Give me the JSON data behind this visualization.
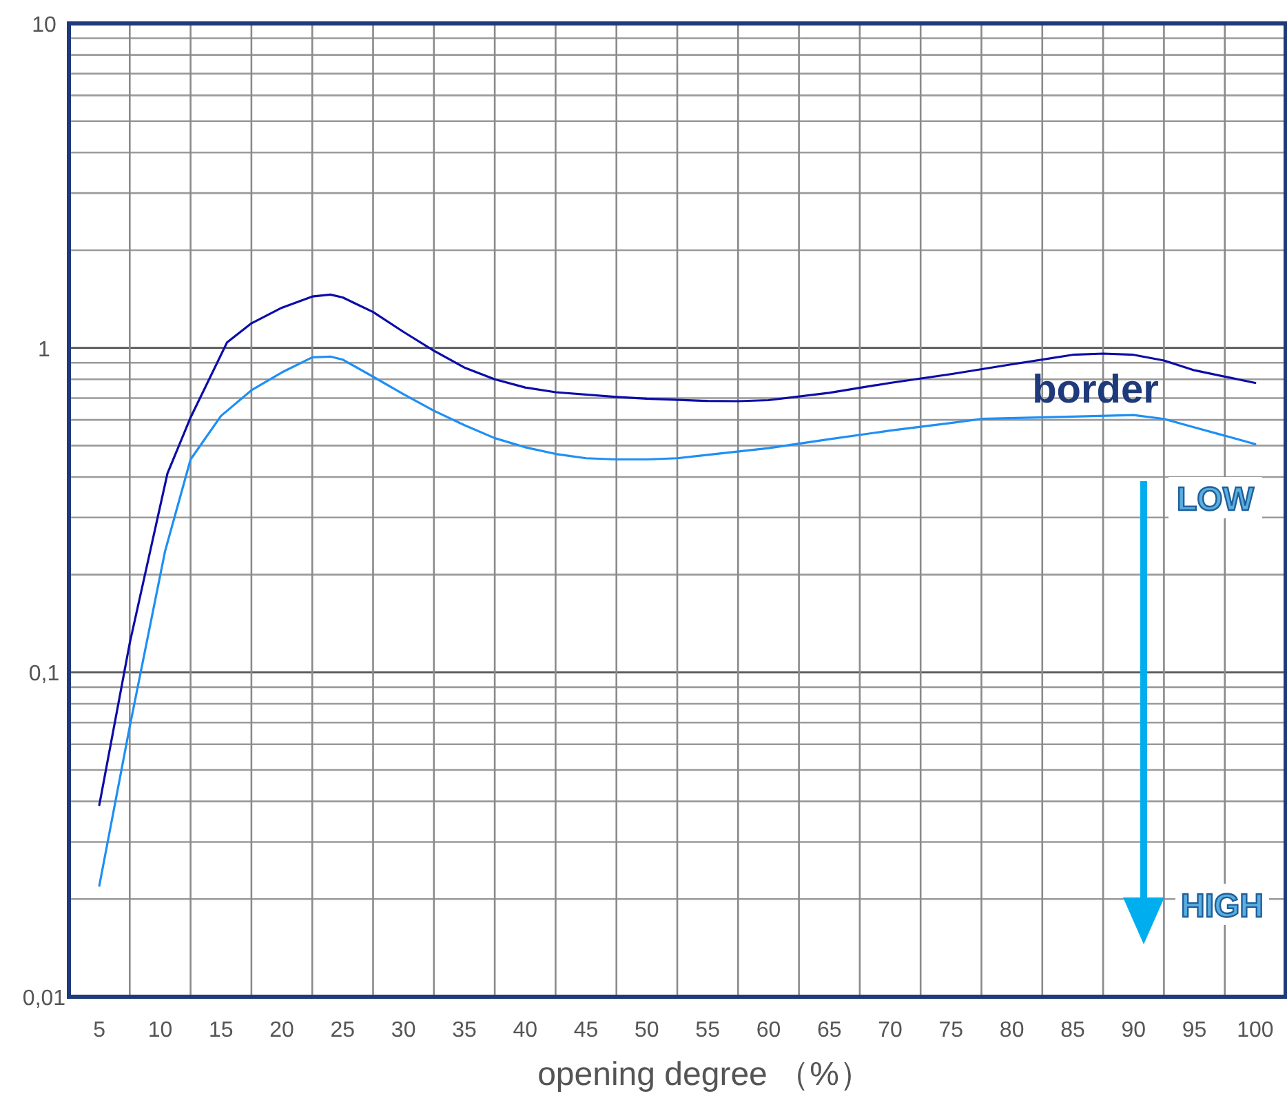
{
  "chart_data": {
    "type": "line",
    "xlabel": "opening degree （%）",
    "log": "y",
    "grid": true,
    "line_style": "solid",
    "xlim": [
      2.5,
      102.5
    ],
    "ylim": [
      0.01,
      10
    ],
    "xticks": [
      5,
      10,
      15,
      20,
      25,
      30,
      35,
      40,
      45,
      50,
      55,
      60,
      65,
      70,
      75,
      80,
      85,
      90,
      95,
      100,
      {
        "value": 7.5,
        "label": null
      },
      {
        "value": 12.5,
        "label": null
      },
      {
        "value": 17.5,
        "label": null
      },
      {
        "value": 22.5,
        "label": null
      },
      {
        "value": 27.5,
        "label": null
      },
      {
        "value": 32.5,
        "label": null
      },
      {
        "value": 37.5,
        "label": null
      },
      {
        "value": 42.5,
        "label": null
      },
      {
        "value": 47.5,
        "label": null
      },
      {
        "value": 52.5,
        "label": null
      },
      {
        "value": 57.5,
        "label": null
      },
      {
        "value": 62.5,
        "label": null
      },
      {
        "value": 67.5,
        "label": null
      },
      {
        "value": 72.5,
        "label": null
      },
      {
        "value": 77.5,
        "label": null
      },
      {
        "value": 82.5,
        "label": null
      },
      {
        "value": 87.5,
        "label": null
      },
      {
        "value": 92.5,
        "label": null
      },
      {
        "value": 97.5,
        "label": null
      }
    ],
    "yticks": [
      {
        "value": 0.01,
        "label": "0,01"
      },
      {
        "value": 0.1,
        "label": "0,1"
      },
      1,
      10
    ],
    "series": [
      {
        "color": "#0c0ca8",
        "x": [
          5,
          7.5,
          10.6,
          12.5,
          15.5,
          17.5,
          20,
          22.5,
          24,
          25,
          27.5,
          30,
          32.5,
          35,
          37.5,
          40,
          42.5,
          47.5,
          50,
          55,
          57.5,
          60,
          65,
          70,
          75,
          80,
          85,
          87.5,
          90,
          92.5,
          95,
          100
        ],
        "values": [
          0.039,
          0.123,
          0.41,
          0.61,
          1.04,
          1.19,
          1.33,
          1.44,
          1.46,
          1.43,
          1.29,
          1.12,
          0.98,
          0.87,
          0.8,
          0.755,
          0.73,
          0.706,
          0.697,
          0.686,
          0.685,
          0.69,
          0.727,
          0.78,
          0.83,
          0.89,
          0.952,
          0.96,
          0.952,
          0.914,
          0.853,
          0.78
        ]
      },
      {
        "color": "#1e8ff5",
        "x": [
          5,
          7.5,
          10.4,
          12.5,
          15,
          17.5,
          20,
          22.5,
          24,
          25,
          27.5,
          30,
          32.5,
          35,
          37.5,
          40,
          42.5,
          45,
          47.5,
          50,
          52.5,
          55,
          60,
          65,
          70,
          75,
          77.5,
          85,
          90,
          92.5,
          95,
          100
        ],
        "values": [
          0.022,
          0.068,
          0.236,
          0.453,
          0.617,
          0.74,
          0.84,
          0.935,
          0.94,
          0.92,
          0.815,
          0.72,
          0.64,
          0.578,
          0.527,
          0.494,
          0.471,
          0.457,
          0.453,
          0.453,
          0.457,
          0.468,
          0.491,
          0.523,
          0.556,
          0.587,
          0.604,
          0.614,
          0.621,
          0.604,
          0.569,
          0.505
        ]
      }
    ],
    "annotations": [
      "border",
      "LOW",
      "HIGH"
    ]
  }
}
